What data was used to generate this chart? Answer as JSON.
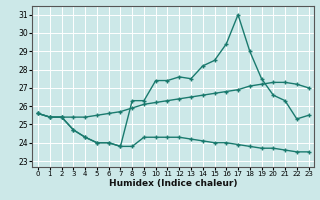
{
  "background_color": "#cce8e8",
  "grid_color": "#b0d0d0",
  "line_color": "#1a7a6e",
  "x_labels": [
    0,
    1,
    2,
    3,
    4,
    5,
    6,
    7,
    8,
    9,
    10,
    11,
    12,
    13,
    14,
    15,
    16,
    17,
    18,
    19,
    20,
    21,
    22,
    23
  ],
  "ylim": [
    22.7,
    31.5
  ],
  "yticks": [
    23,
    24,
    25,
    26,
    27,
    28,
    29,
    30,
    31
  ],
  "xlabel": "Humidex (Indice chaleur)",
  "line1_x": [
    0,
    1,
    2,
    3,
    4,
    5,
    6,
    7,
    8,
    9,
    10,
    11,
    12,
    13,
    14,
    15,
    16,
    17,
    18,
    19,
    20,
    21,
    22,
    23
  ],
  "line1_y": [
    25.6,
    25.4,
    25.4,
    25.4,
    25.4,
    25.5,
    25.6,
    25.7,
    25.9,
    26.1,
    26.2,
    26.3,
    26.4,
    26.5,
    26.6,
    26.7,
    26.8,
    26.9,
    27.1,
    27.2,
    27.3,
    27.3,
    27.2,
    27.0
  ],
  "line2_x": [
    0,
    1,
    2,
    3,
    4,
    5,
    6,
    7,
    8,
    9,
    10,
    11,
    12,
    13,
    14,
    15,
    16,
    17,
    18,
    19,
    20,
    21,
    22,
    23
  ],
  "line2_y": [
    25.6,
    25.4,
    25.4,
    24.7,
    24.3,
    24.0,
    24.0,
    23.8,
    26.3,
    26.3,
    27.4,
    27.4,
    27.6,
    27.5,
    28.2,
    28.5,
    29.4,
    31.0,
    29.0,
    27.5,
    26.6,
    26.3,
    25.3,
    25.5
  ],
  "line3_x": [
    0,
    1,
    2,
    3,
    4,
    5,
    6,
    7,
    8,
    9,
    10,
    11,
    12,
    13,
    14,
    15,
    16,
    17,
    18,
    19,
    20,
    21,
    22,
    23
  ],
  "line3_y": [
    25.6,
    25.4,
    25.4,
    24.7,
    24.3,
    24.0,
    24.0,
    23.8,
    23.8,
    24.3,
    24.3,
    24.3,
    24.3,
    24.2,
    24.1,
    24.0,
    24.0,
    23.9,
    23.8,
    23.7,
    23.7,
    23.6,
    23.5,
    23.5
  ]
}
